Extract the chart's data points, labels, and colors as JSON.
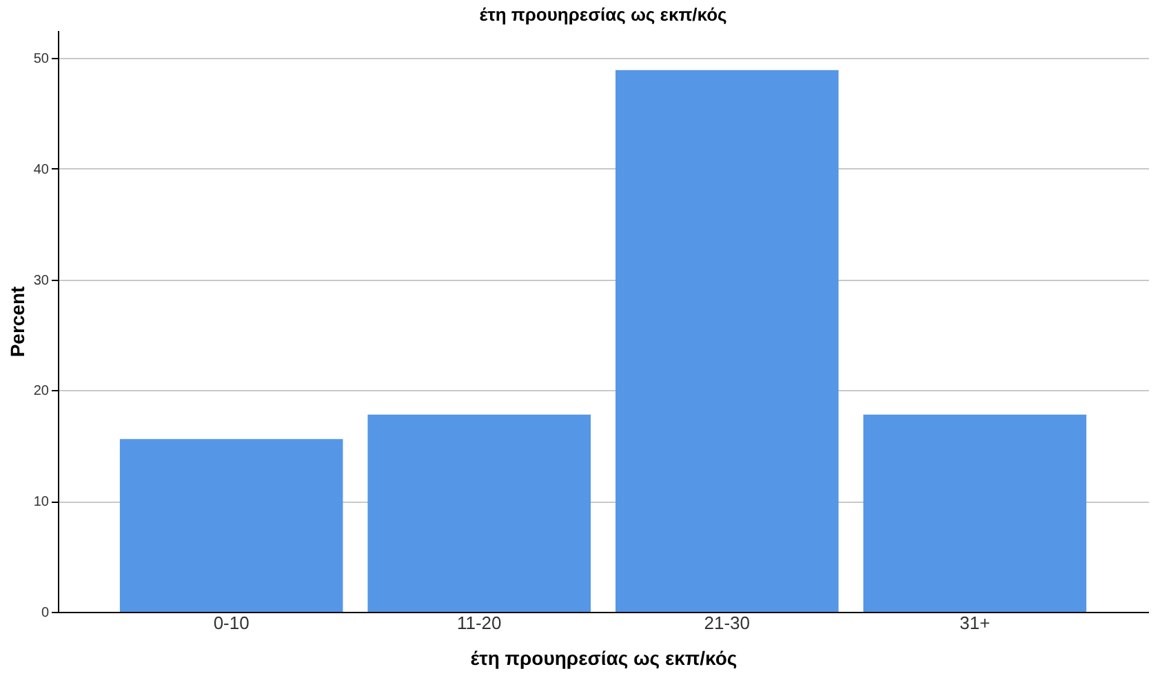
{
  "chart_data": {
    "type": "bar",
    "title": "έτη προυηρεσίας ως εκπ/κός",
    "xlabel": "έτη προυηρεσίας ως εκπ/κός",
    "ylabel": "Percent",
    "categories": [
      "0-10",
      "11-20",
      "21-30",
      "31+"
    ],
    "values": [
      15.6,
      17.8,
      48.9,
      17.8
    ],
    "color": "#5596e6",
    "ylim": [
      0,
      52.5
    ],
    "yticks": [
      0,
      10,
      20,
      30,
      40,
      50
    ],
    "grid": "y"
  }
}
